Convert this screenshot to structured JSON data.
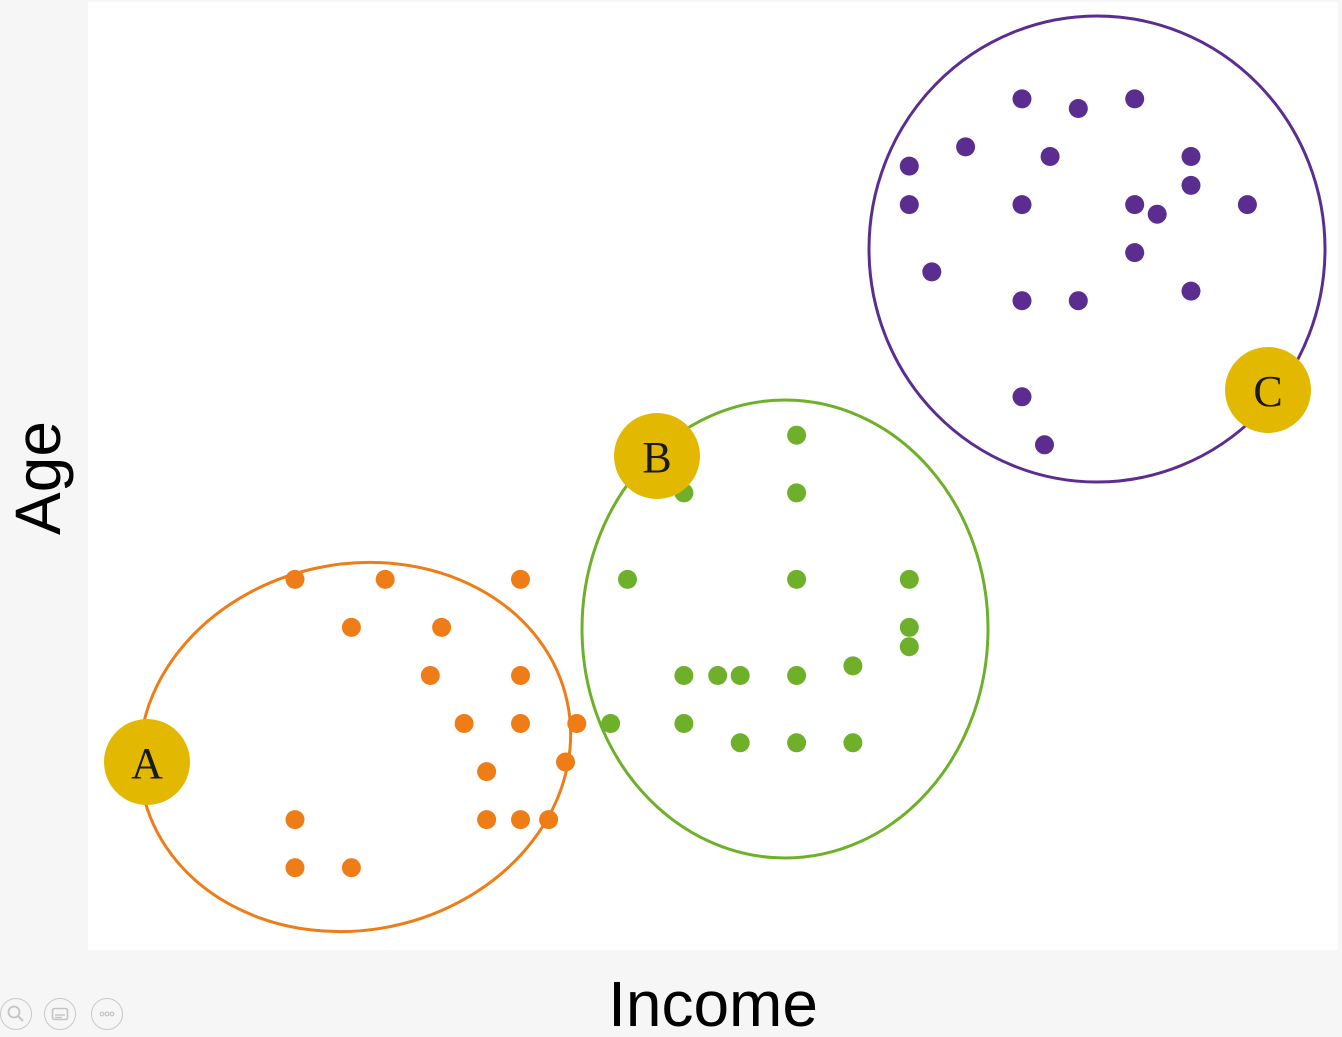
{
  "chart_data": {
    "type": "scatter",
    "title": "",
    "xlabel": "Income",
    "ylabel": "Age",
    "xlim": [
      0,
      100
    ],
    "ylim": [
      0,
      100
    ],
    "grid": false,
    "series": [
      {
        "name": "A",
        "color": "#ef7d17",
        "points": [
          [
            15,
            42
          ],
          [
            23,
            42
          ],
          [
            20,
            37
          ],
          [
            27,
            32
          ],
          [
            28,
            37
          ],
          [
            30,
            27
          ],
          [
            35,
            42
          ],
          [
            35,
            32
          ],
          [
            35,
            27
          ],
          [
            32,
            22
          ],
          [
            32,
            17
          ],
          [
            40,
            27
          ],
          [
            39,
            23
          ],
          [
            37.5,
            17
          ],
          [
            35,
            17
          ],
          [
            20,
            12
          ],
          [
            15,
            17
          ],
          [
            15,
            12
          ]
        ]
      },
      {
        "name": "B",
        "color": "#6fb02b",
        "points": [
          [
            59.5,
            57
          ],
          [
            49.5,
            51
          ],
          [
            59.5,
            51
          ],
          [
            44.5,
            42
          ],
          [
            59.5,
            42
          ],
          [
            69.5,
            42
          ],
          [
            69.5,
            37
          ],
          [
            69.5,
            35
          ],
          [
            49.5,
            32
          ],
          [
            52.5,
            32
          ],
          [
            54.5,
            32
          ],
          [
            59.5,
            32
          ],
          [
            64.5,
            33
          ],
          [
            43,
            27
          ],
          [
            49.5,
            27
          ],
          [
            54.5,
            25
          ],
          [
            59.5,
            25
          ],
          [
            64.5,
            25
          ]
        ]
      },
      {
        "name": "C",
        "color": "#5b2d90",
        "points": [
          [
            79.5,
            92
          ],
          [
            84.5,
            91
          ],
          [
            89.5,
            92
          ],
          [
            74.5,
            87
          ],
          [
            69.5,
            85
          ],
          [
            82,
            86
          ],
          [
            94.5,
            86
          ],
          [
            94.5,
            83
          ],
          [
            69.5,
            81
          ],
          [
            79.5,
            81
          ],
          [
            89.5,
            81
          ],
          [
            91.5,
            80
          ],
          [
            99.5,
            81
          ],
          [
            89.5,
            76
          ],
          [
            71.5,
            74
          ],
          [
            79.5,
            71
          ],
          [
            84.5,
            71
          ],
          [
            94.5,
            72
          ],
          [
            79.5,
            61
          ],
          [
            81.5,
            56
          ]
        ]
      }
    ],
    "clusters": [
      {
        "label": "A",
        "color": "#ef7d17"
      },
      {
        "label": "B",
        "color": "#6fb02b"
      },
      {
        "label": "C",
        "color": "#5b2d90"
      }
    ],
    "badge_color": "#e2b900"
  },
  "controls": {
    "zoom_icon": "magnifier-icon",
    "captions_icon": "captions-icon",
    "more_icon": "more-icon"
  }
}
